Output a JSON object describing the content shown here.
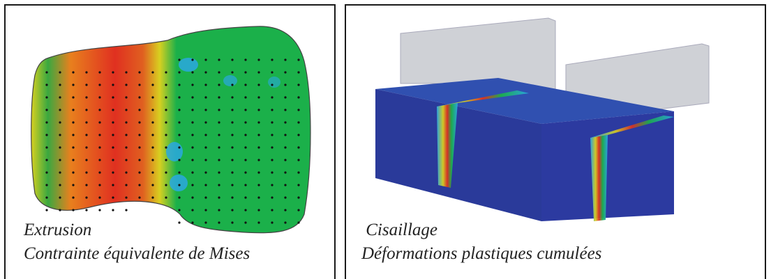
{
  "panels": [
    {
      "title": "Extrusion",
      "subtitle": "Contrainte équivalente de Mises"
    },
    {
      "title": " Cisaillage",
      "subtitle": "Déformations plastiques cumulées"
    }
  ],
  "colors": {
    "border": "#1a1a1a",
    "green": "#1bb04a",
    "red": "#e03020",
    "orange": "#e8801e",
    "yellow": "#d8d020",
    "cyan": "#2aa8e0",
    "deep_blue": "#2a3a9a",
    "gray_plate": "#cfd1d6"
  }
}
